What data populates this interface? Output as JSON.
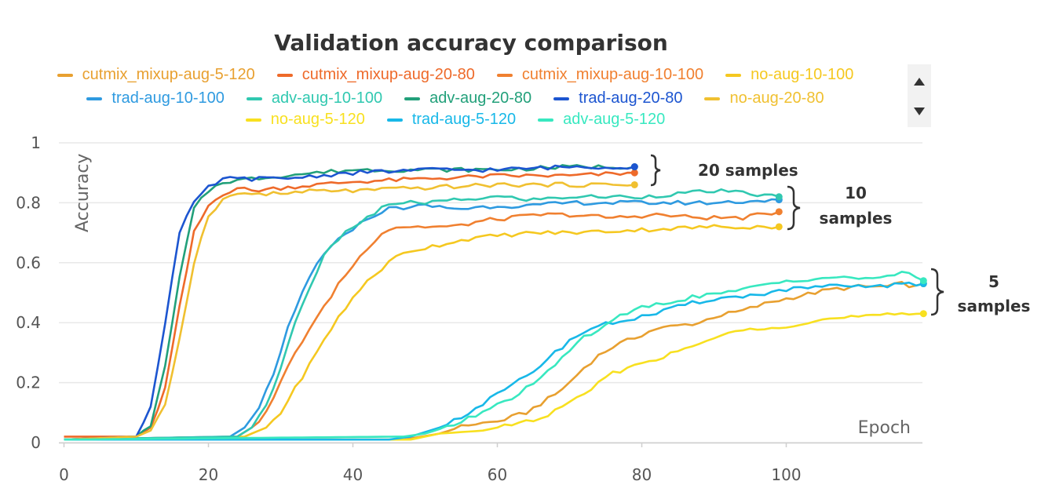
{
  "chart_data": {
    "type": "line",
    "title": "Validation accuracy comparison",
    "xlabel": "Epoch",
    "ylabel": "Accuracy",
    "xlim": [
      0,
      119
    ],
    "ylim": [
      0,
      1
    ],
    "x_ticks": [
      "0",
      "20",
      "40",
      "60",
      "80",
      "100"
    ],
    "y_ticks": [
      "0",
      "0.2",
      "0.4",
      "0.6",
      "0.8",
      "1"
    ],
    "grid": true,
    "legend_position": "top",
    "annotations": [
      "20 samples",
      "10",
      "samples",
      "5",
      "samples"
    ],
    "series": [
      {
        "name": "cutmix_mixup-aug-5-120",
        "color": "#E8A030",
        "keypoints": [
          [
            0,
            0.01
          ],
          [
            47,
            0.01
          ],
          [
            52,
            0.03
          ],
          [
            56,
            0.06
          ],
          [
            60,
            0.07
          ],
          [
            64,
            0.1
          ],
          [
            68,
            0.16
          ],
          [
            70,
            0.2
          ],
          [
            72,
            0.25
          ],
          [
            74,
            0.29
          ],
          [
            76,
            0.32
          ],
          [
            78,
            0.34
          ],
          [
            80,
            0.36
          ],
          [
            82,
            0.38
          ],
          [
            85,
            0.39
          ],
          [
            88,
            0.4
          ],
          [
            90,
            0.42
          ],
          [
            94,
            0.44
          ],
          [
            98,
            0.47
          ],
          [
            102,
            0.49
          ],
          [
            106,
            0.51
          ],
          [
            110,
            0.52
          ],
          [
            114,
            0.52
          ],
          [
            116,
            0.53
          ],
          [
            118,
            0.52
          ],
          [
            119,
            0.53
          ]
        ]
      },
      {
        "name": "cutmix_mixup-aug-20-80",
        "color": "#EE6A2A",
        "keypoints": [
          [
            0,
            0.02
          ],
          [
            10,
            0.02
          ],
          [
            12,
            0.05
          ],
          [
            14,
            0.18
          ],
          [
            16,
            0.45
          ],
          [
            18,
            0.7
          ],
          [
            20,
            0.79
          ],
          [
            22,
            0.83
          ],
          [
            24,
            0.85
          ],
          [
            26,
            0.84
          ],
          [
            30,
            0.85
          ],
          [
            35,
            0.86
          ],
          [
            40,
            0.87
          ],
          [
            50,
            0.88
          ],
          [
            60,
            0.89
          ],
          [
            70,
            0.89
          ],
          [
            79,
            0.9
          ]
        ]
      },
      {
        "name": "cutmix_mixup-aug-10-100",
        "color": "#F08030",
        "keypoints": [
          [
            0,
            0.01
          ],
          [
            24,
            0.02
          ],
          [
            26,
            0.05
          ],
          [
            28,
            0.1
          ],
          [
            30,
            0.2
          ],
          [
            32,
            0.3
          ],
          [
            34,
            0.38
          ],
          [
            36,
            0.45
          ],
          [
            38,
            0.53
          ],
          [
            40,
            0.59
          ],
          [
            42,
            0.65
          ],
          [
            44,
            0.7
          ],
          [
            46,
            0.72
          ],
          [
            50,
            0.72
          ],
          [
            54,
            0.72
          ],
          [
            58,
            0.74
          ],
          [
            62,
            0.75
          ],
          [
            66,
            0.76
          ],
          [
            70,
            0.76
          ],
          [
            76,
            0.75
          ],
          [
            82,
            0.76
          ],
          [
            88,
            0.75
          ],
          [
            94,
            0.75
          ],
          [
            99,
            0.77
          ]
        ]
      },
      {
        "name": "no-aug-10-100",
        "color": "#F5C820",
        "keypoints": [
          [
            0,
            0.01
          ],
          [
            25,
            0.02
          ],
          [
            28,
            0.05
          ],
          [
            30,
            0.1
          ],
          [
            32,
            0.18
          ],
          [
            34,
            0.26
          ],
          [
            36,
            0.34
          ],
          [
            38,
            0.42
          ],
          [
            40,
            0.48
          ],
          [
            42,
            0.54
          ],
          [
            44,
            0.58
          ],
          [
            46,
            0.62
          ],
          [
            48,
            0.64
          ],
          [
            52,
            0.66
          ],
          [
            56,
            0.68
          ],
          [
            60,
            0.69
          ],
          [
            65,
            0.7
          ],
          [
            70,
            0.7
          ],
          [
            80,
            0.71
          ],
          [
            90,
            0.72
          ],
          [
            99,
            0.72
          ]
        ]
      },
      {
        "name": "trad-aug-10-100",
        "color": "#2E9AE0",
        "keypoints": [
          [
            0,
            0.01
          ],
          [
            23,
            0.02
          ],
          [
            25,
            0.05
          ],
          [
            27,
            0.12
          ],
          [
            29,
            0.22
          ],
          [
            31,
            0.38
          ],
          [
            33,
            0.5
          ],
          [
            35,
            0.6
          ],
          [
            37,
            0.65
          ],
          [
            39,
            0.7
          ],
          [
            41,
            0.73
          ],
          [
            43,
            0.76
          ],
          [
            45,
            0.78
          ],
          [
            50,
            0.79
          ],
          [
            55,
            0.78
          ],
          [
            60,
            0.79
          ],
          [
            65,
            0.79
          ],
          [
            70,
            0.8
          ],
          [
            80,
            0.8
          ],
          [
            90,
            0.8
          ],
          [
            99,
            0.81
          ]
        ]
      },
      {
        "name": "adv-aug-10-100",
        "color": "#30C8B0",
        "keypoints": [
          [
            0,
            0.01
          ],
          [
            24,
            0.02
          ],
          [
            26,
            0.05
          ],
          [
            28,
            0.12
          ],
          [
            30,
            0.25
          ],
          [
            32,
            0.4
          ],
          [
            34,
            0.52
          ],
          [
            36,
            0.62
          ],
          [
            38,
            0.68
          ],
          [
            40,
            0.72
          ],
          [
            42,
            0.75
          ],
          [
            44,
            0.78
          ],
          [
            46,
            0.8
          ],
          [
            50,
            0.8
          ],
          [
            55,
            0.81
          ],
          [
            60,
            0.82
          ],
          [
            65,
            0.81
          ],
          [
            70,
            0.82
          ],
          [
            75,
            0.82
          ],
          [
            80,
            0.82
          ],
          [
            85,
            0.83
          ],
          [
            90,
            0.84
          ],
          [
            95,
            0.83
          ],
          [
            99,
            0.82
          ]
        ]
      },
      {
        "name": "adv-aug-20-80",
        "color": "#22A07A",
        "keypoints": [
          [
            0,
            0.01
          ],
          [
            10,
            0.02
          ],
          [
            12,
            0.06
          ],
          [
            14,
            0.25
          ],
          [
            16,
            0.55
          ],
          [
            18,
            0.78
          ],
          [
            20,
            0.84
          ],
          [
            22,
            0.87
          ],
          [
            26,
            0.88
          ],
          [
            30,
            0.89
          ],
          [
            35,
            0.9
          ],
          [
            40,
            0.91
          ],
          [
            50,
            0.91
          ],
          [
            60,
            0.91
          ],
          [
            70,
            0.92
          ],
          [
            79,
            0.92
          ]
        ]
      },
      {
        "name": "trad-aug-20-80",
        "color": "#1C55D0",
        "keypoints": [
          [
            0,
            0.01
          ],
          [
            10,
            0.02
          ],
          [
            12,
            0.12
          ],
          [
            14,
            0.4
          ],
          [
            16,
            0.7
          ],
          [
            18,
            0.8
          ],
          [
            20,
            0.85
          ],
          [
            22,
            0.88
          ],
          [
            26,
            0.88
          ],
          [
            30,
            0.88
          ],
          [
            35,
            0.89
          ],
          [
            40,
            0.9
          ],
          [
            50,
            0.91
          ],
          [
            60,
            0.91
          ],
          [
            70,
            0.92
          ],
          [
            79,
            0.92
          ]
        ]
      },
      {
        "name": "no-aug-20-80",
        "color": "#F0C030",
        "keypoints": [
          [
            0,
            0.01
          ],
          [
            10,
            0.02
          ],
          [
            12,
            0.04
          ],
          [
            14,
            0.12
          ],
          [
            16,
            0.35
          ],
          [
            18,
            0.6
          ],
          [
            20,
            0.76
          ],
          [
            22,
            0.81
          ],
          [
            24,
            0.83
          ],
          [
            30,
            0.83
          ],
          [
            35,
            0.84
          ],
          [
            40,
            0.84
          ],
          [
            50,
            0.85
          ],
          [
            60,
            0.86
          ],
          [
            70,
            0.86
          ],
          [
            79,
            0.86
          ]
        ]
      },
      {
        "name": "no-aug-5-120",
        "color": "#F8E020",
        "keypoints": [
          [
            0,
            0.01
          ],
          [
            48,
            0.01
          ],
          [
            52,
            0.03
          ],
          [
            58,
            0.04
          ],
          [
            62,
            0.06
          ],
          [
            66,
            0.08
          ],
          [
            70,
            0.13
          ],
          [
            72,
            0.16
          ],
          [
            74,
            0.2
          ],
          [
            76,
            0.23
          ],
          [
            78,
            0.25
          ],
          [
            82,
            0.28
          ],
          [
            86,
            0.31
          ],
          [
            90,
            0.35
          ],
          [
            95,
            0.38
          ],
          [
            100,
            0.39
          ],
          [
            105,
            0.41
          ],
          [
            110,
            0.42
          ],
          [
            119,
            0.43
          ]
        ]
      },
      {
        "name": "trad-aug-5-120",
        "color": "#18B8E8",
        "keypoints": [
          [
            0,
            0.01
          ],
          [
            45,
            0.01
          ],
          [
            48,
            0.02
          ],
          [
            52,
            0.05
          ],
          [
            56,
            0.1
          ],
          [
            60,
            0.16
          ],
          [
            64,
            0.22
          ],
          [
            66,
            0.26
          ],
          [
            68,
            0.3
          ],
          [
            70,
            0.34
          ],
          [
            72,
            0.37
          ],
          [
            74,
            0.39
          ],
          [
            78,
            0.41
          ],
          [
            82,
            0.43
          ],
          [
            86,
            0.46
          ],
          [
            90,
            0.48
          ],
          [
            95,
            0.49
          ],
          [
            100,
            0.51
          ],
          [
            105,
            0.52
          ],
          [
            110,
            0.52
          ],
          [
            119,
            0.53
          ]
        ]
      },
      {
        "name": "adv-aug-5-120",
        "color": "#38E8C0",
        "keypoints": [
          [
            0,
            0.01
          ],
          [
            47,
            0.02
          ],
          [
            50,
            0.03
          ],
          [
            54,
            0.06
          ],
          [
            58,
            0.1
          ],
          [
            62,
            0.15
          ],
          [
            66,
            0.21
          ],
          [
            68,
            0.26
          ],
          [
            70,
            0.31
          ],
          [
            72,
            0.35
          ],
          [
            74,
            0.38
          ],
          [
            76,
            0.41
          ],
          [
            78,
            0.43
          ],
          [
            80,
            0.45
          ],
          [
            84,
            0.47
          ],
          [
            88,
            0.49
          ],
          [
            92,
            0.5
          ],
          [
            96,
            0.52
          ],
          [
            100,
            0.54
          ],
          [
            105,
            0.55
          ],
          [
            110,
            0.55
          ],
          [
            114,
            0.55
          ],
          [
            117,
            0.57
          ],
          [
            119,
            0.54
          ]
        ]
      }
    ]
  }
}
